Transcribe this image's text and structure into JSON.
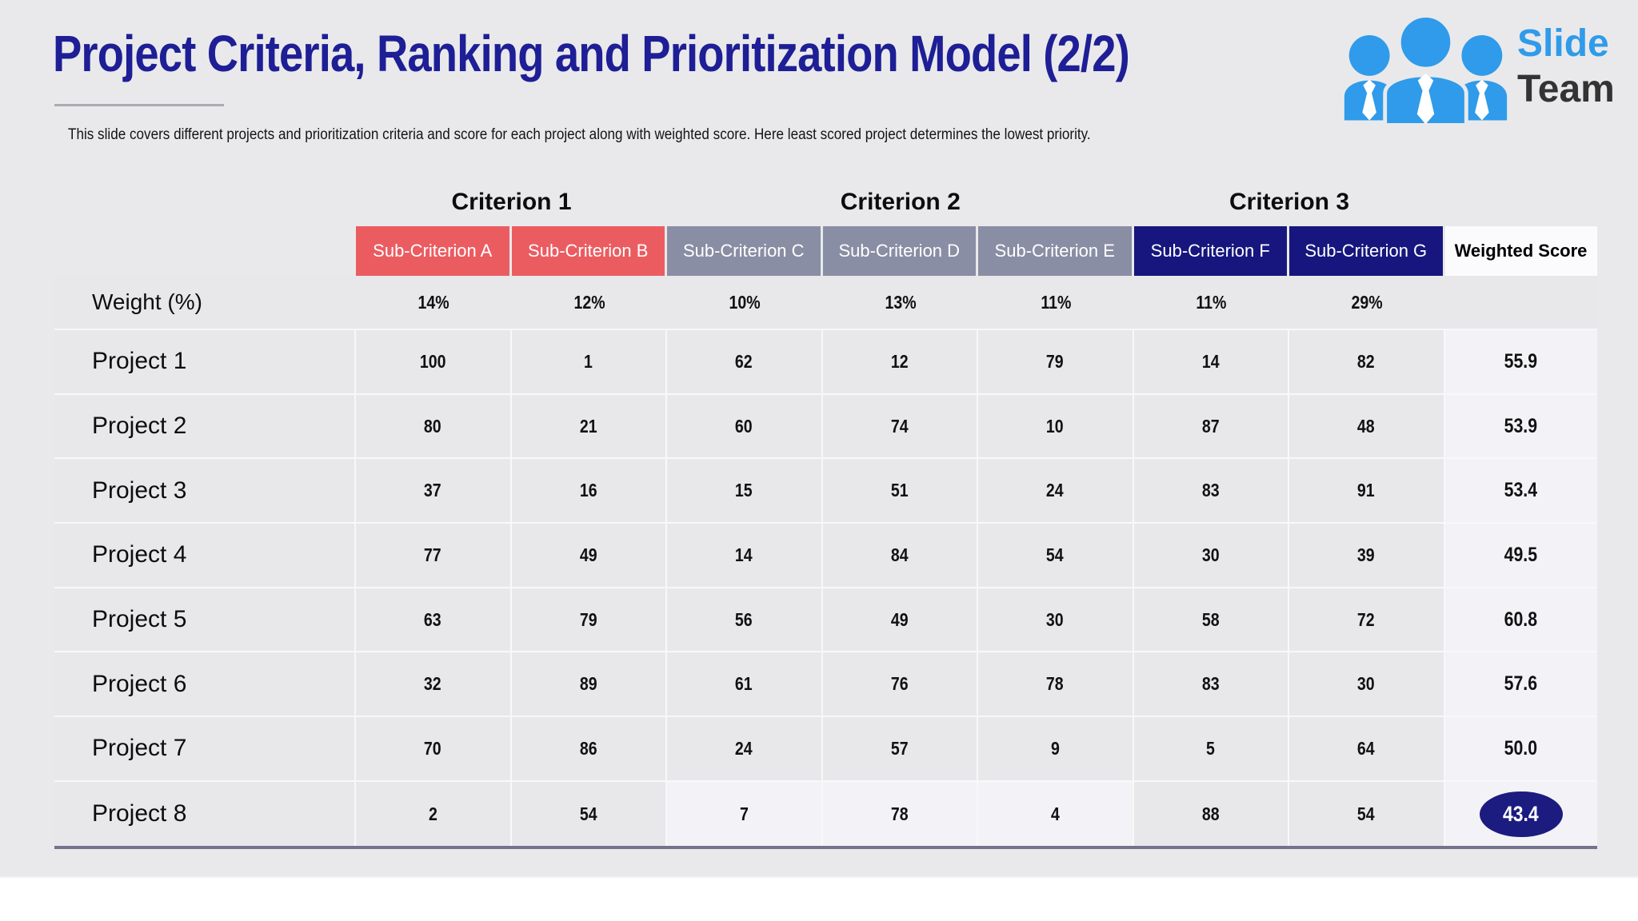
{
  "slide": {
    "title": "Project Criteria, Ranking and Prioritization Model (2/2)",
    "subtitle": "This slide covers different projects and prioritization criteria and score for each project along with weighted score. Here least scored project determines the lowest priority."
  },
  "logo": {
    "icon": "three-people-with-ties",
    "word1": "Slide",
    "word2": "Team",
    "blue": "#2f9bea",
    "dark": "#333333"
  },
  "colors": {
    "slide_background": "#e9e9eb",
    "title_navy": "#1e1e96",
    "red_header": "#eb5c61",
    "gray_header": "#8a8ea4",
    "navy_header": "#16167e",
    "weighted_header_bg": "#fbfbfd",
    "row_gray": "#e8e8eb",
    "light_cell": "#f3f3f7",
    "badge_navy": "#1b1b80",
    "table_bottom_line": "#73738e"
  },
  "table": {
    "criterion_groups": [
      {
        "label": "Criterion 1",
        "span": 2
      },
      {
        "label": "Criterion 2",
        "span": 3
      },
      {
        "label": "Criterion 3",
        "span": 2
      }
    ],
    "sub_criteria": [
      {
        "label": "Sub-Criterion A",
        "bg": "#eb5c61"
      },
      {
        "label": "Sub-Criterion B",
        "bg": "#eb5c61"
      },
      {
        "label": "Sub-Criterion C",
        "bg": "#8a8ea4"
      },
      {
        "label": "Sub-Criterion D",
        "bg": "#8a8ea4"
      },
      {
        "label": "Sub-Criterion E",
        "bg": "#8a8ea4"
      },
      {
        "label": "Sub-Criterion F",
        "bg": "#16167e"
      },
      {
        "label": "Sub-Criterion G",
        "bg": "#16167e"
      }
    ],
    "weighted_score_header": "Weighted Score",
    "weight_row": {
      "label": "Weight (%)",
      "values": [
        "14%",
        "12%",
        "10%",
        "13%",
        "11%",
        "11%",
        "29%"
      ]
    },
    "projects": [
      {
        "label": "Project 1",
        "scores": [
          "100",
          "1",
          "62",
          "12",
          "79",
          "14",
          "82"
        ],
        "weighted": "55.9"
      },
      {
        "label": "Project 2",
        "scores": [
          "80",
          "21",
          "60",
          "74",
          "10",
          "87",
          "48"
        ],
        "weighted": "53.9"
      },
      {
        "label": "Project 3",
        "scores": [
          "37",
          "16",
          "15",
          "51",
          "24",
          "83",
          "91"
        ],
        "weighted": "53.4"
      },
      {
        "label": "Project 4",
        "scores": [
          "77",
          "49",
          "14",
          "84",
          "54",
          "30",
          "39"
        ],
        "weighted": "49.5"
      },
      {
        "label": "Project 5",
        "scores": [
          "63",
          "79",
          "56",
          "49",
          "30",
          "58",
          "72"
        ],
        "weighted": "60.8"
      },
      {
        "label": "Project 6",
        "scores": [
          "32",
          "89",
          "61",
          "76",
          "78",
          "83",
          "30"
        ],
        "weighted": "57.6"
      },
      {
        "label": "Project 7",
        "scores": [
          "70",
          "86",
          "24",
          "57",
          "9",
          "5",
          "64"
        ],
        "weighted": "50.0"
      },
      {
        "label": "Project 8",
        "scores": [
          "2",
          "54",
          "7",
          "78",
          "4",
          "88",
          "54"
        ],
        "weighted": "43.4",
        "weighted_badge": true,
        "light_cells": [
          2,
          3,
          4
        ]
      }
    ]
  }
}
